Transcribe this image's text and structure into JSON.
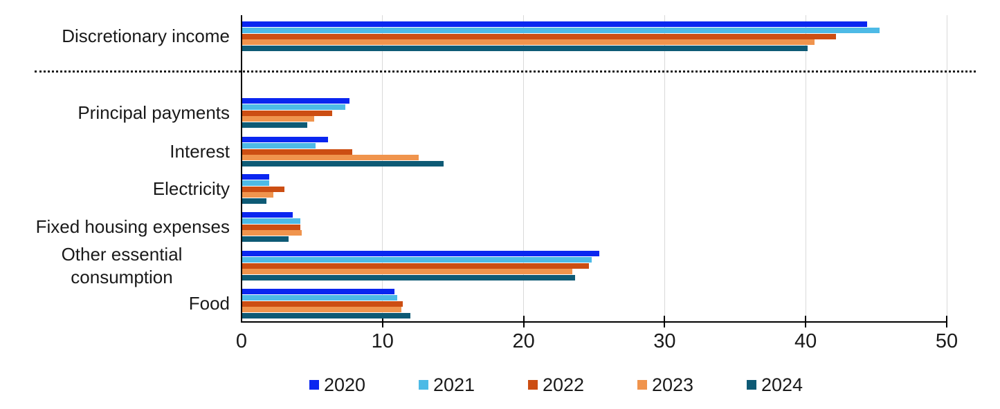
{
  "chart_data": {
    "type": "bar",
    "orientation": "horizontal",
    "title": "",
    "xlabel": "",
    "ylabel": "",
    "xlim": [
      0,
      50
    ],
    "x_ticks": [
      "0",
      "10",
      "20",
      "30",
      "40",
      "50"
    ],
    "grid": true,
    "legend_position": "bottom",
    "separator_after_category_index": 0,
    "categories": [
      "Discretionary income",
      "Principal payments",
      "Interest",
      "Electricity",
      "Fixed housing expenses",
      "Other essential\nconsumption",
      "Food"
    ],
    "series": [
      {
        "name": "2020",
        "color": "#0a26f0",
        "values": [
          44.4,
          7.7,
          6.2,
          2.0,
          3.7,
          25.4,
          10.9
        ]
      },
      {
        "name": "2021",
        "color": "#4dbae6",
        "values": [
          45.3,
          7.4,
          5.3,
          2.0,
          4.2,
          24.9,
          11.1
        ]
      },
      {
        "name": "2022",
        "color": "#cc4e13",
        "values": [
          42.2,
          6.5,
          7.9,
          3.1,
          4.2,
          24.7,
          11.5
        ]
      },
      {
        "name": "2023",
        "color": "#f0944d",
        "values": [
          40.7,
          5.2,
          12.6,
          2.3,
          4.3,
          23.5,
          11.4
        ]
      },
      {
        "name": "2024",
        "color": "#0e5a75",
        "values": [
          40.2,
          4.7,
          14.4,
          1.8,
          3.4,
          23.7,
          12.0
        ]
      }
    ],
    "axis_color": "#000000",
    "gridline_color": "#d9d9d9",
    "separator_color": "#1a1a1a",
    "text_color": "#1a1a1a"
  }
}
